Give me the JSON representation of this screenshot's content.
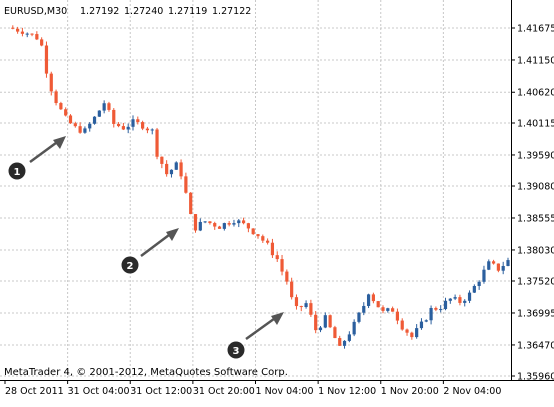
{
  "chart_data": {
    "type": "candlestick",
    "symbol_timeframe": "EURUSD,M30",
    "ohlc": [
      "1.27192",
      "1.27240",
      "1.27119",
      "1.27122"
    ],
    "copyright": "MetaTrader 4, © 2001-2012, MetaQuotes Software Corp.",
    "y_ticks": [
      "1.41675",
      "1.41150",
      "1.40620",
      "1.40115",
      "1.39590",
      "1.39080",
      "1.38555",
      "1.38030",
      "1.37520",
      "1.36995",
      "1.36470",
      "1.35960"
    ],
    "x_ticks": [
      "28 Oct 2011",
      "31 Oct 04:00",
      "31 Oct 12:00",
      "31 Oct 20:00",
      "1 Nov 04:00",
      "1 Nov 12:00",
      "1 Nov 20:00",
      "2 Nov 04:00"
    ],
    "ylim": [
      1.3596,
      1.41675
    ],
    "grid": true,
    "colors": {
      "bull": "#2b5f9e",
      "bear": "#ef5a36",
      "grid": "#c8c8c8",
      "arrow": "#555555",
      "badge": "#2a2a2a"
    },
    "annotations": [
      "1",
      "2",
      "3"
    ],
    "close_path": [
      [
        0,
        1.4168
      ],
      [
        3,
        1.4163
      ],
      [
        6,
        1.4152
      ],
      [
        7,
        1.4138
      ],
      [
        8,
        1.4098
      ],
      [
        9,
        1.4068
      ],
      [
        10,
        1.4048
      ],
      [
        11,
        1.4032
      ],
      [
        12,
        1.4018
      ],
      [
        14,
        1.4003
      ],
      [
        16,
        1.3998
      ],
      [
        18,
        1.402
      ],
      [
        20,
        1.4045
      ],
      [
        22,
        1.401
      ],
      [
        24,
        1.4004
      ],
      [
        26,
        1.4012
      ],
      [
        28,
        1.4008
      ],
      [
        30,
        1.3998
      ],
      [
        31,
        1.3962
      ],
      [
        33,
        1.3928
      ],
      [
        35,
        1.3942
      ],
      [
        36,
        1.3928
      ],
      [
        37,
        1.3895
      ],
      [
        38,
        1.3858
      ],
      [
        39,
        1.384
      ],
      [
        41,
        1.385
      ],
      [
        44,
        1.3842
      ],
      [
        47,
        1.3853
      ],
      [
        50,
        1.384
      ],
      [
        52,
        1.3828
      ],
      [
        54,
        1.381
      ],
      [
        56,
        1.3788
      ],
      [
        57,
        1.3768
      ],
      [
        58,
        1.3752
      ],
      [
        59,
        1.3722
      ],
      [
        60,
        1.3705
      ],
      [
        62,
        1.3715
      ],
      [
        64,
        1.3672
      ],
      [
        66,
        1.369
      ],
      [
        68,
        1.3658
      ],
      [
        69,
        1.364
      ],
      [
        70,
        1.3655
      ],
      [
        72,
        1.368
      ],
      [
        74,
        1.3712
      ],
      [
        75,
        1.3735
      ],
      [
        76,
        1.3722
      ],
      [
        78,
        1.37
      ],
      [
        80,
        1.3705
      ],
      [
        82,
        1.3678
      ],
      [
        84,
        1.366
      ],
      [
        86,
        1.368
      ],
      [
        88,
        1.3705
      ],
      [
        90,
        1.371
      ],
      [
        92,
        1.3722
      ],
      [
        94,
        1.3718
      ],
      [
        96,
        1.373
      ],
      [
        98,
        1.3755
      ],
      [
        100,
        1.378
      ],
      [
        102,
        1.3772
      ],
      [
        104,
        1.3785
      ]
    ]
  }
}
